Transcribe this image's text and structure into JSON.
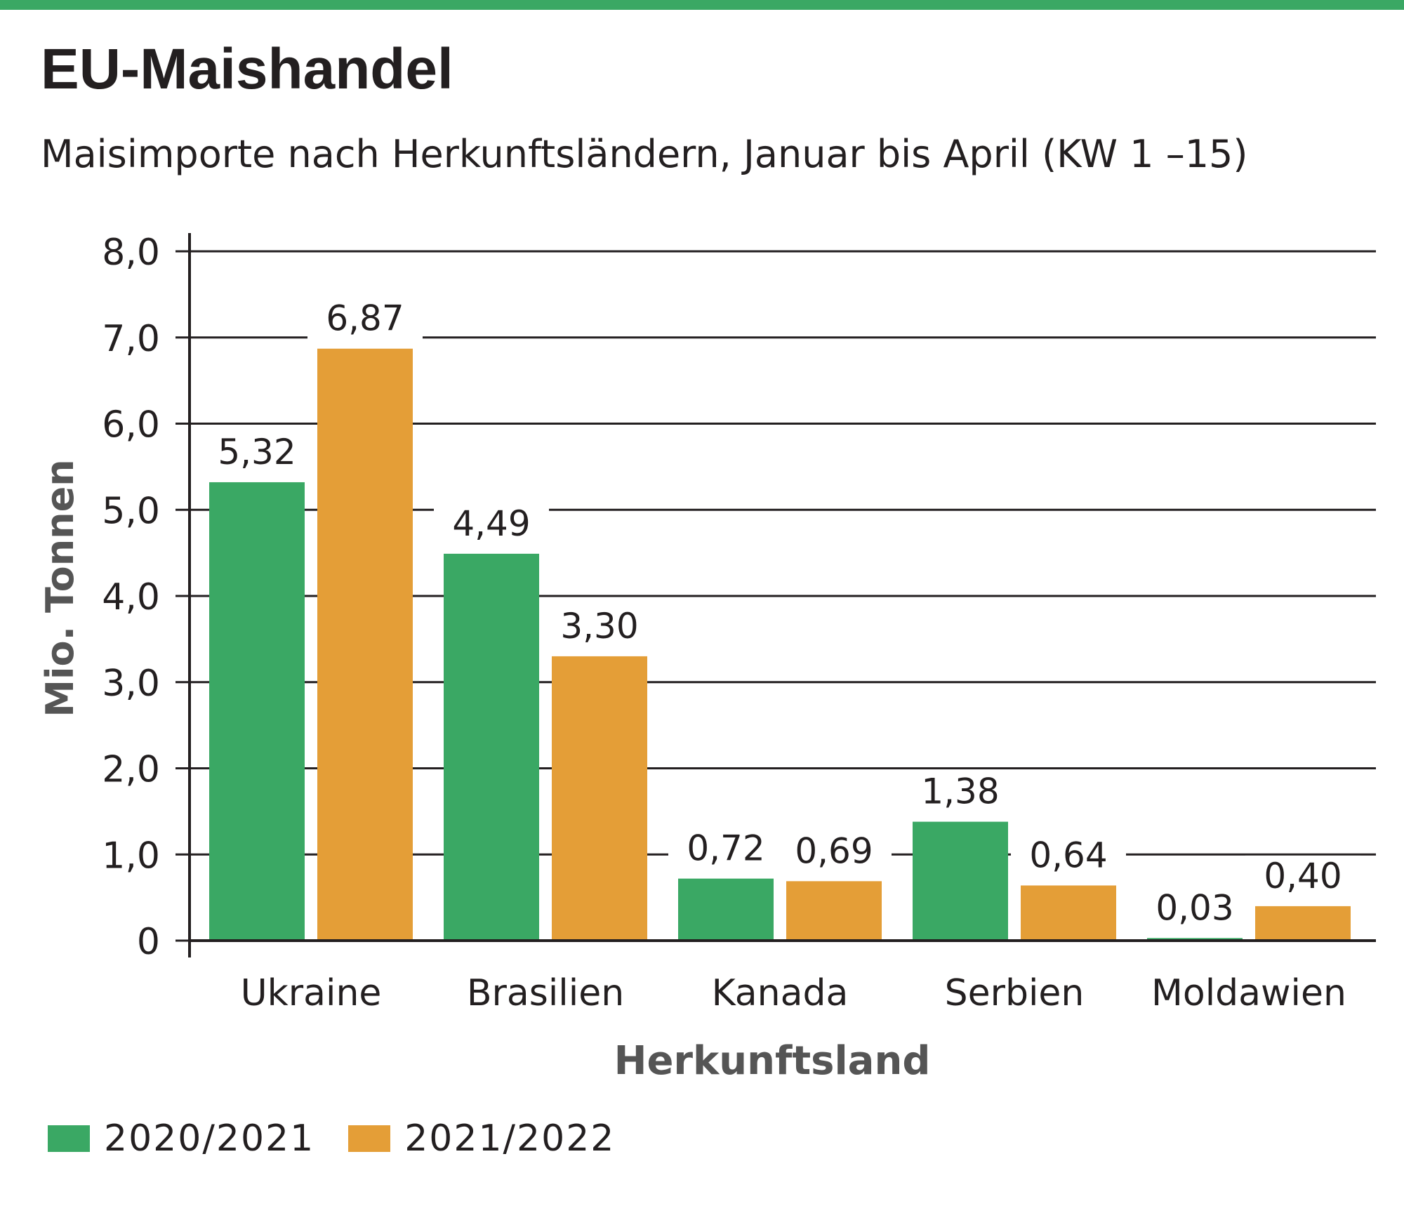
{
  "header": {
    "title": "EU-Maishandel",
    "subtitle": "Maisimporte nach Herkunftsländern, Januar bis April (KW 1 –15)"
  },
  "colors": {
    "accent_green": "#3aa864",
    "series_2020": "#3aa864",
    "series_2021": "#e49e37",
    "axis": "#231f20"
  },
  "chart_data": {
    "type": "bar",
    "title": "EU-Maishandel",
    "subtitle": "Maisimporte nach Herkunftsländern, Januar bis April (KW 1 –15)",
    "xlabel": "Herkunftsland",
    "ylabel": "Mio. Tonnen",
    "ylim": [
      0,
      8
    ],
    "yticks": [
      0,
      1,
      2,
      3,
      4,
      5,
      6,
      7,
      8
    ],
    "ytick_labels": [
      "0",
      "1,0",
      "2,0",
      "3,0",
      "4,0",
      "5,0",
      "6,0",
      "7,0",
      "8,0"
    ],
    "grid": true,
    "legend_position": "bottom-left",
    "categories": [
      "Ukraine",
      "Brasilien",
      "Kanada",
      "Serbien",
      "Moldawien"
    ],
    "series": [
      {
        "name": "2020/2021",
        "color": "#3aa864",
        "values": [
          5.32,
          4.49,
          0.72,
          1.38,
          0.03
        ],
        "labels": [
          "5,32",
          "4,49",
          "0,72",
          "1,38",
          "0,03"
        ]
      },
      {
        "name": "2021/2022",
        "color": "#e49e37",
        "values": [
          6.87,
          3.3,
          0.69,
          0.64,
          0.4
        ],
        "labels": [
          "6,87",
          "3,30",
          "0,69",
          "0,64",
          "0,40"
        ]
      }
    ]
  }
}
